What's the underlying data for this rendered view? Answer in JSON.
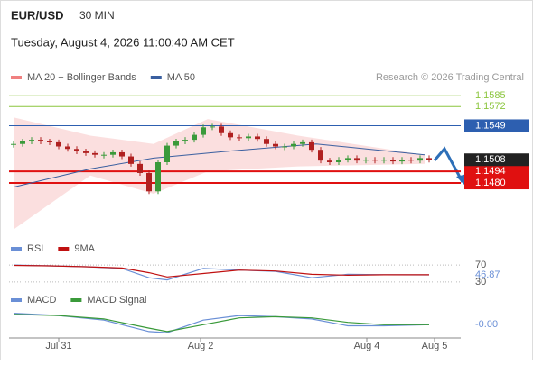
{
  "header": {
    "symbol": "EUR/USD",
    "interval": "30 MIN",
    "datetime": "Tuesday, August 4, 2026 11:00:40 AM CET",
    "copyright": "Research © 2026 Trading Central"
  },
  "chart_data": [
    {
      "type": "candlestick",
      "xlim": [
        -0.5,
        49.5
      ],
      "xticks": [
        {
          "value": 5,
          "label": "Jul 31"
        },
        {
          "value": 20.7,
          "label": "Aug 2"
        },
        {
          "value": 39.1,
          "label": "Aug 4"
        },
        {
          "value": 46.6,
          "label": "Aug 5"
        }
      ],
      "ylim": [
        1.1416,
        1.1594
      ],
      "values": [
        1.1527,
        1.153,
        1.1532,
        1.153,
        1.1529,
        1.1524,
        1.1521,
        1.1518,
        1.1516,
        1.1514,
        1.1514,
        1.1517,
        1.1512,
        1.1503,
        1.1492,
        1.147,
        1.1505,
        1.1525,
        1.153,
        1.1532,
        1.1538,
        1.1547,
        1.1548,
        1.154,
        1.1535,
        1.1534,
        1.1536,
        1.1533,
        1.1527,
        1.1524,
        1.1524,
        1.1527,
        1.1529,
        1.152,
        1.1507,
        1.1505,
        1.1508,
        1.151,
        1.1507,
        1.1508,
        1.1507,
        1.1508,
        1.1506,
        1.1508,
        1.1507,
        1.151,
        1.1508
      ],
      "up_color": "#3a9a3a",
      "down_color": "#b02020",
      "series": [
        {
          "name": "MA 20 + Bollinger Bands",
          "color": "#f08080",
          "x": [
            0,
            8.5,
            15.5,
            21.5,
            31.5,
            45.5
          ],
          "upper": [
            1.1559,
            1.1537,
            1.1527,
            1.1557,
            1.1537,
            1.1514
          ],
          "lower": [
            1.1424,
            1.1489,
            1.1467,
            1.1494,
            1.15,
            1.1503
          ]
        },
        {
          "name": "MA 50",
          "color": "#3a5fa0",
          "x": [
            0,
            8.5,
            15.5,
            23.5,
            33.5,
            45.5
          ],
          "values": [
            1.1475,
            1.1497,
            1.151,
            1.1518,
            1.1527,
            1.1514
          ]
        }
      ],
      "levels": [
        {
          "value": 1.1585,
          "label": "1.1585",
          "color": "#8cc63f",
          "width": 1,
          "boxed": false
        },
        {
          "value": 1.1572,
          "label": "1.1572",
          "color": "#8cc63f",
          "width": 1,
          "boxed": false
        },
        {
          "value": 1.1549,
          "label": "1.1549",
          "color": "#2d5fb0",
          "width": 1,
          "boxed": true
        },
        {
          "value": 1.1494,
          "label": "1.1494",
          "color": "#e01010",
          "width": 2,
          "boxed": true
        },
        {
          "value": 1.148,
          "label": "1.1480",
          "color": "#e01010",
          "width": 2,
          "boxed": true
        }
      ],
      "last": {
        "value": 1.1508,
        "label": "1.1508",
        "color": "#222222"
      }
    },
    {
      "type": "line",
      "xlim": [
        -0.5,
        49.5
      ],
      "ylim": [
        15,
        85
      ],
      "yticks": [
        70,
        30
      ],
      "series": [
        {
          "name": "RSI",
          "color": "#6a8fd6",
          "x": [
            0,
            4,
            8,
            12,
            15,
            17,
            21,
            25,
            29,
            33,
            37,
            41,
            46
          ],
          "values": [
            70,
            68,
            66,
            62,
            40,
            35,
            62,
            58,
            55,
            40,
            48,
            47,
            46.87
          ]
        },
        {
          "name": "9MA",
          "color": "#c01010",
          "x": [
            0,
            4,
            8,
            12,
            15,
            17,
            21,
            25,
            29,
            33,
            37,
            41,
            46
          ],
          "values": [
            69,
            68,
            66,
            63,
            52,
            42,
            50,
            58,
            56,
            48,
            46,
            47,
            47
          ]
        }
      ],
      "last": {
        "value": 46.87,
        "label": "46.87",
        "color": "#6a8fd6"
      }
    },
    {
      "type": "line",
      "xlim": [
        -0.5,
        49.5
      ],
      "ylim": [
        -0.0016,
        0.0014
      ],
      "series": [
        {
          "name": "MACD",
          "color": "#6a8fd6",
          "x": [
            0,
            5,
            10,
            15,
            17,
            21,
            25,
            29,
            33,
            37,
            41,
            46
          ],
          "values": [
            0.0008,
            0.0006,
            0.0002,
            -0.0008,
            -0.0009,
            0.0002,
            0.0006,
            0.0005,
            0.0003,
            -0.0003,
            -0.0003,
            -0.0002
          ]
        },
        {
          "name": "MACD Signal",
          "color": "#3a9a3a",
          "x": [
            0,
            5,
            10,
            15,
            17,
            21,
            25,
            29,
            33,
            37,
            41,
            46
          ],
          "values": [
            0.0007,
            0.0006,
            0.0003,
            -0.0005,
            -0.0008,
            -0.0002,
            0.0004,
            0.0005,
            0.0004,
            0.0,
            -0.0002,
            -0.0002
          ]
        }
      ],
      "last": {
        "value": -0.0002,
        "label": "-0.00",
        "color": "#6a8fd6"
      }
    }
  ]
}
